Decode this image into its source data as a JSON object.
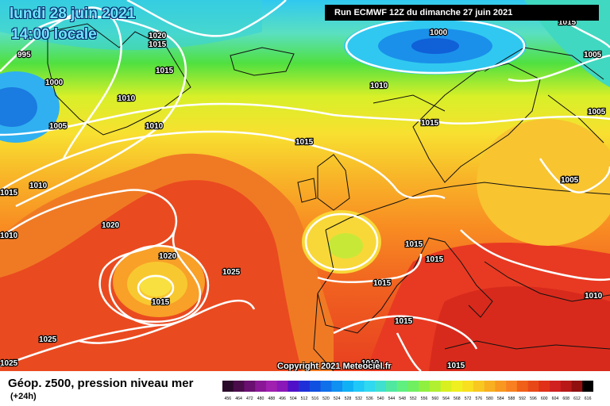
{
  "header": {
    "date": "lundi 28 juin 2021",
    "local_time": "14:00 locale",
    "run_info": "Run ECMWF 12Z du dimanche 27 juin 2021"
  },
  "copyright": "Copyright 2021 Meteociel.fr",
  "footer": {
    "title": "Géop. z500, pression niveau mer",
    "forecast_offset": "(+24h)"
  },
  "isobar_labels": [
    "1020",
    "1015",
    "995",
    "1000",
    "1005",
    "1010",
    "1010",
    "1015",
    "1015",
    "1010",
    "1015",
    "1000",
    "1010",
    "1015",
    "1015",
    "1005",
    "1005",
    "1010",
    "1015",
    "1010",
    "1020",
    "1020",
    "1025",
    "1015",
    "1015",
    "1015",
    "1015",
    "1025",
    "1025",
    "1010",
    "1015",
    "1015",
    "1010",
    "1015",
    "1015",
    "1005"
  ],
  "scale": {
    "ticks": [
      "456",
      "464",
      "472",
      "480",
      "488",
      "496",
      "504",
      "512",
      "516",
      "520",
      "524",
      "528",
      "532",
      "536",
      "540",
      "544",
      "548",
      "552",
      "556",
      "560",
      "564",
      "568",
      "572",
      "576",
      "580",
      "584",
      "588",
      "592",
      "596",
      "600",
      "604",
      "608",
      "612",
      "616"
    ],
    "colors": [
      "#2a0a2a",
      "#4a0d4a",
      "#6a1070",
      "#8a1896",
      "#a020b0",
      "#8a18b8",
      "#5010c8",
      "#2030d8",
      "#1050e0",
      "#1070ea",
      "#1090f0",
      "#10b0f4",
      "#20c8f8",
      "#30d8f0",
      "#40e0d0",
      "#50e8a0",
      "#60f080",
      "#70f060",
      "#90f040",
      "#b0f030",
      "#d8f020",
      "#f0f020",
      "#f8e020",
      "#f8c820",
      "#f8b020",
      "#f89820",
      "#f88020",
      "#f06018",
      "#e84818",
      "#e03018",
      "#d02020",
      "#b81818",
      "#901010",
      "#000000"
    ]
  },
  "map_colors": {
    "blue": "#1a7be0",
    "cyan": "#30c8f0",
    "green": "#40d848",
    "yellow": "#f8e830",
    "orange": "#f8a020",
    "red": "#e83820",
    "land_outline": "#111111",
    "isobar": "#ffffff"
  }
}
